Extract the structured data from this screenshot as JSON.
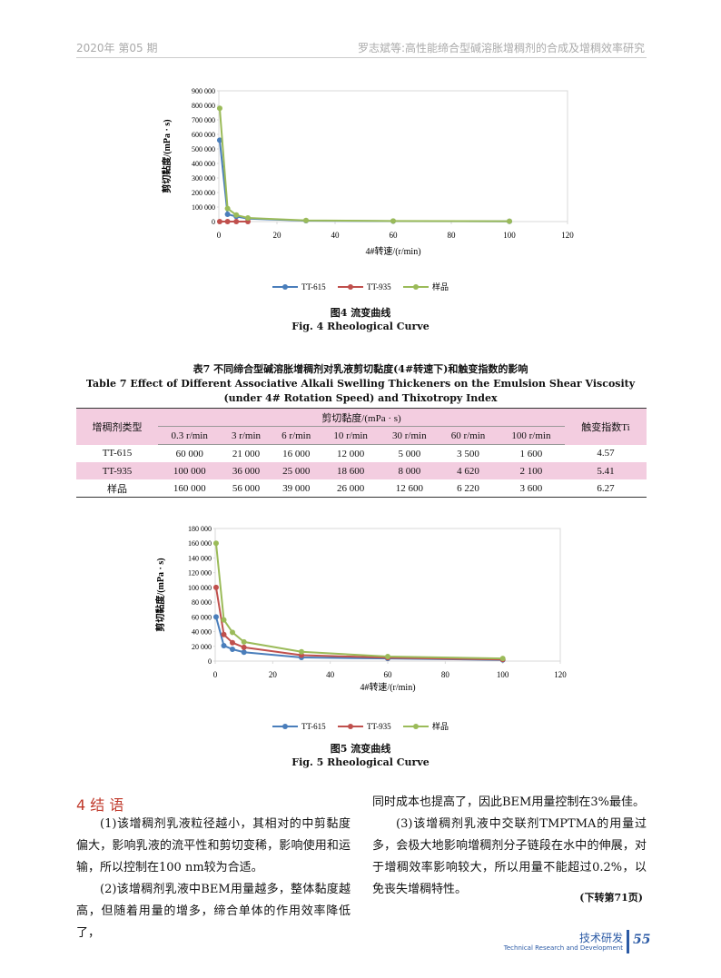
{
  "header": {
    "left": "2020年  第05 期",
    "right": "罗志斌等:高性能缔合型碱溶胀增稠剂的合成及增稠效率研究"
  },
  "chart_data": [
    {
      "type": "line",
      "caption_cn": "图4   流变曲线",
      "caption_en": "Fig. 4    Rheological Curve",
      "xlabel": "4#转速/(r/min)",
      "ylabel": "剪切黏度/(mPa · s)",
      "x": [
        0.3,
        3,
        6,
        10,
        30,
        60,
        100
      ],
      "series": [
        {
          "name": "TT-615",
          "color": "#4a7ebb",
          "values": [
            560000,
            50000,
            35000,
            20000,
            6000,
            3000,
            1500
          ]
        },
        {
          "name": "TT-935",
          "color": "#c0504d",
          "values": [
            0,
            0,
            0,
            0,
            null,
            null,
            null
          ]
        },
        {
          "name": "样品",
          "color": "#9bbb59",
          "values": [
            780000,
            90000,
            45000,
            25000,
            8000,
            4000,
            2000
          ]
        }
      ],
      "xlim": [
        0,
        120
      ],
      "xticks": [
        0,
        20,
        40,
        60,
        80,
        100,
        120
      ],
      "ylim": [
        0,
        900000
      ],
      "yticks": [
        0,
        {
          "value": 100000,
          "label": "100 000"
        },
        {
          "value": 200000,
          "label": "200 000"
        },
        {
          "value": 300000,
          "label": "300 000"
        },
        {
          "value": 400000,
          "label": "400 000"
        },
        {
          "value": 500000,
          "label": "500 000"
        },
        {
          "value": 600000,
          "label": "600 000"
        },
        {
          "value": 700000,
          "label": "700 000"
        },
        {
          "value": 800000,
          "label": "800 000"
        },
        {
          "value": 900000,
          "label": "900 000"
        }
      ],
      "grid": false,
      "legend": "bottom"
    },
    {
      "type": "line",
      "caption_cn": "图5   流变曲线",
      "caption_en": "Fig. 5    Rheological Curve",
      "xlabel": "4#转速/(r/min)",
      "ylabel": "剪切黏度/(mPa · s)",
      "x": [
        0.3,
        3,
        6,
        10,
        30,
        60,
        100
      ],
      "series": [
        {
          "name": "TT-615",
          "color": "#4a7ebb",
          "values": [
            60000,
            21000,
            16000,
            12000,
            5000,
            3500,
            1600
          ]
        },
        {
          "name": "TT-935",
          "color": "#c0504d",
          "values": [
            100000,
            36000,
            25000,
            18600,
            8000,
            4620,
            2100
          ]
        },
        {
          "name": "样品",
          "color": "#9bbb59",
          "values": [
            160000,
            56000,
            39000,
            26000,
            12600,
            6220,
            3600
          ]
        }
      ],
      "xlim": [
        0,
        120
      ],
      "xticks": [
        0,
        20,
        40,
        60,
        80,
        100,
        120
      ],
      "ylim": [
        0,
        180000
      ],
      "yticks": [
        0,
        {
          "value": 20000,
          "label": "20 000"
        },
        {
          "value": 40000,
          "label": "40 000"
        },
        {
          "value": 60000,
          "label": "60 000"
        },
        {
          "value": 80000,
          "label": "80 000"
        },
        {
          "value": 100000,
          "label": "100 000"
        },
        {
          "value": 120000,
          "label": "120 000"
        },
        {
          "value": 140000,
          "label": "140 000"
        },
        {
          "value": 160000,
          "label": "160 000"
        },
        {
          "value": 180000,
          "label": "180 000"
        }
      ],
      "grid": false,
      "legend": "bottom"
    }
  ],
  "table": {
    "title_cn": "表7   不同缔合型碱溶胀增稠剂对乳液剪切黏度(4#转速下)和触变指数的影响",
    "title_en": "Table 7   Effect of Different Associative Alkali Swelling Thickeners on the Emulsion Shear Viscosity (under 4# Rotation Speed) and Thixotropy Index",
    "col_type": "增稠剂类型",
    "col_group": "剪切黏度/(mPa · s)",
    "col_ti": "触变指数Ti",
    "speeds": [
      "0.3 r/min",
      "3 r/min",
      "6 r/min",
      "10 r/min",
      "30 r/min",
      "60 r/min",
      "100 r/min"
    ],
    "rows": [
      [
        "TT-615",
        "60 000",
        "21 000",
        "16 000",
        "12 000",
        "5 000",
        "3 500",
        "1 600",
        "4.57"
      ],
      [
        "TT-935",
        "100 000",
        "36 000",
        "25 000",
        "18 600",
        "8 000",
        "4 620",
        "2 100",
        "5.41"
      ],
      [
        "样品",
        "160 000",
        "56 000",
        "39 000",
        "26 000",
        "12 600",
        "6 220",
        "3 600",
        "6.27"
      ]
    ]
  },
  "section": {
    "heading": "4  结  语",
    "left": [
      "(1)该增稠剂乳液粒径越小，其相对的中剪黏度偏大，影响乳液的流平性和剪切变稀，影响使用和运输，所以控制在100 nm较为合适。",
      "(2)该增稠剂乳液中BEM用量越多，整体黏度越高，但随着用量的增多，缔合单体的作用效率降低了，"
    ],
    "right": [
      "同时成本也提高了，因此BEM用量控制在3%最佳。",
      "(3)该增稠剂乳液中交联剂TMPTMA的用量过多，会极大地影响增稠剂分子链段在水中的伸展，对于增稠效率影响较大，所以用量不能超过0.2%，以免丧失增稠特性。"
    ],
    "continued": "(下转第71页)"
  },
  "footer": {
    "cn": "技术研发",
    "en": "Technical Research and Development",
    "page": "55"
  }
}
